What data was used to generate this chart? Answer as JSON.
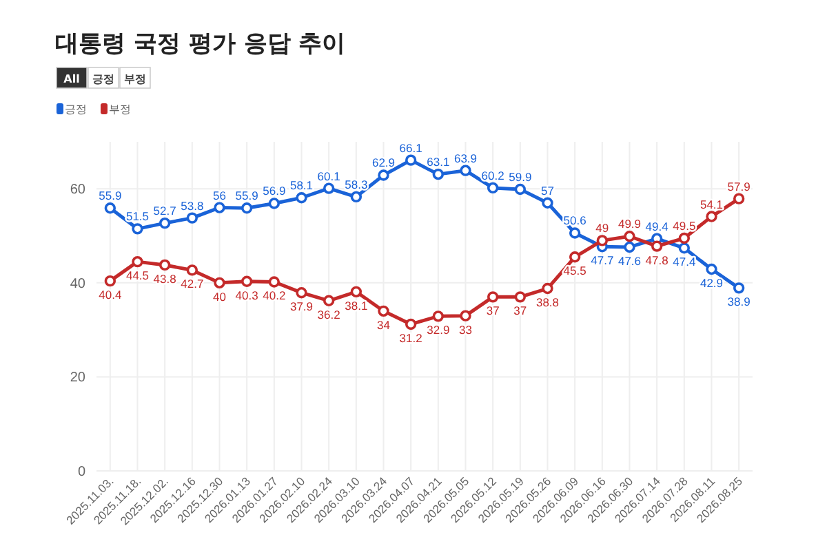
{
  "chart_data": {
    "type": "line",
    "title": "대통령 국정 평가 응답 추이",
    "annotations": [
      "All",
      "긍정",
      "부정"
    ],
    "categories": [
      "2025.11.03.",
      "2025.11.18.",
      "2025.12.02.",
      "2025.12.16",
      "2025.12.30",
      "2026.01.13",
      "2026.01.27",
      "2026.02.10",
      "2026.02.24",
      "2026.03.10",
      "2026.03.24",
      "2026.04.07",
      "2026.04.21",
      "2026.05.05",
      "2026.05.12",
      "2026.05.19",
      "2026.05.26",
      "2026.06.09",
      "2026.06.16",
      "2026.06.30",
      "2026.07.14",
      "2026.07.28",
      "2026.08.11",
      "2026.08.25"
    ],
    "series": [
      {
        "name": "긍정",
        "color": "#1a63d8",
        "values": [
          55.9,
          51.5,
          52.7,
          53.8,
          56,
          55.9,
          56.9,
          58.1,
          60.1,
          58.3,
          62.9,
          66.1,
          63.1,
          63.9,
          60.2,
          59.9,
          57,
          50.6,
          47.7,
          47.6,
          49.4,
          47.4,
          42.9,
          38.9
        ]
      },
      {
        "name": "부정",
        "color": "#c42a2a",
        "values": [
          40.4,
          44.5,
          43.8,
          42.7,
          40,
          40.3,
          40.2,
          37.9,
          36.2,
          38.1,
          34,
          31.2,
          32.9,
          33,
          37,
          37,
          38.8,
          45.5,
          49,
          49.9,
          47.8,
          49.5,
          54.1,
          57.9
        ]
      }
    ],
    "ylim": [
      0,
      70
    ],
    "yticks": [
      0,
      20,
      40,
      60
    ],
    "grid": true,
    "legend": "top left",
    "marker": "circle",
    "line_style": "solid",
    "data_labels": true
  }
}
